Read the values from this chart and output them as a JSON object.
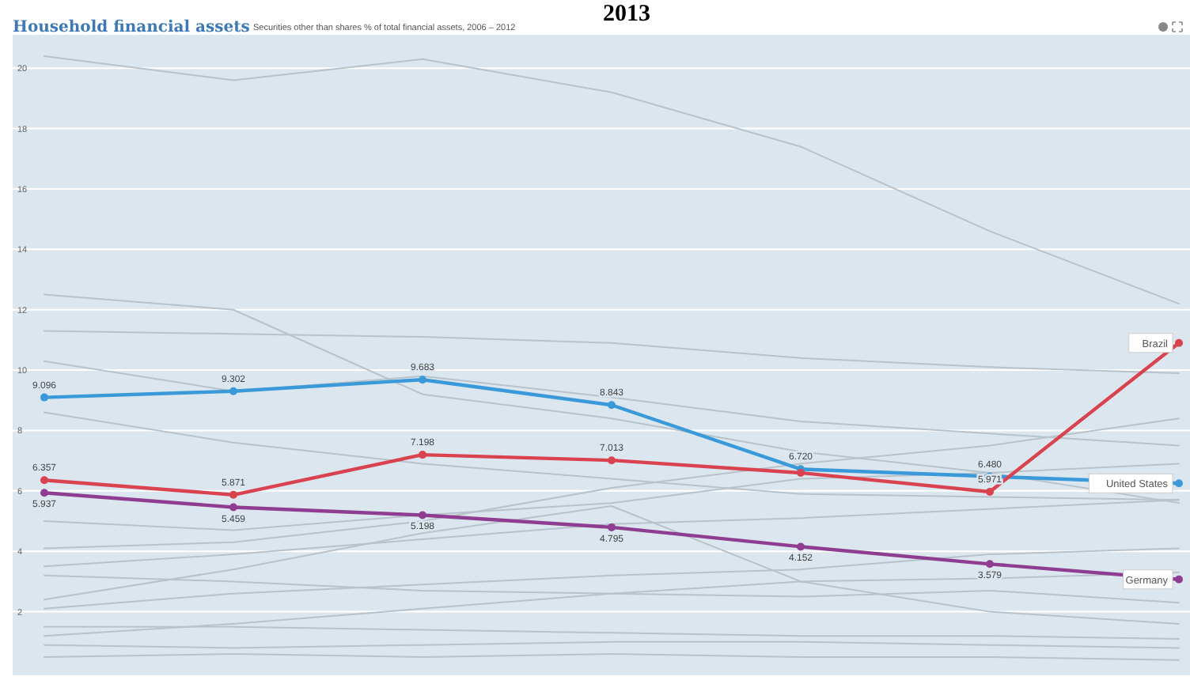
{
  "chart_data": {
    "type": "line",
    "title": "Household financial assets",
    "subtitle": "Securities other than shares % of total financial assets, 2006 – 2012",
    "annotations": [
      "2013"
    ],
    "categories": [
      null,
      null,
      null,
      null,
      null,
      null,
      null
    ],
    "ylim": [
      0,
      21
    ],
    "yticks": [
      2,
      4,
      6,
      8,
      10,
      12,
      14,
      16,
      18,
      20
    ],
    "grid": "y",
    "series": [
      {
        "color": "#b8c2ca",
        "marker": "none",
        "values": [
          20.4,
          19.6,
          20.3,
          19.2,
          17.4,
          14.6,
          12.2
        ]
      },
      {
        "color": "#b8c2ca",
        "marker": "none",
        "values": [
          12.5,
          12.0,
          9.2,
          8.4,
          7.3,
          6.6,
          5.6
        ]
      },
      {
        "color": "#b8c2ca",
        "marker": "none",
        "values": [
          11.3,
          11.2,
          11.1,
          10.9,
          10.4,
          10.1,
          9.9
        ]
      },
      {
        "color": "#b8c2ca",
        "marker": "none",
        "values": [
          10.3,
          9.3,
          9.8,
          9.1,
          8.3,
          7.9,
          7.5
        ]
      },
      {
        "color": "#b8c2ca",
        "marker": "none",
        "values": [
          8.6,
          7.6,
          6.9,
          6.4,
          5.9,
          5.8,
          5.7
        ]
      },
      {
        "color": "#b8c2ca",
        "marker": "none",
        "values": [
          4.1,
          4.3,
          5.0,
          6.1,
          6.9,
          7.5,
          8.4
        ]
      },
      {
        "color": "#b8c2ca",
        "marker": "none",
        "values": [
          5.0,
          4.7,
          5.2,
          5.6,
          6.4,
          6.6,
          6.9
        ]
      },
      {
        "color": "#b8c2ca",
        "marker": "none",
        "values": [
          3.5,
          3.9,
          4.4,
          4.9,
          5.1,
          5.4,
          5.7
        ]
      },
      {
        "color": "#b8c2ca",
        "marker": "none",
        "values": [
          2.4,
          3.4,
          4.6,
          5.5,
          3.0,
          2.0,
          1.6
        ]
      },
      {
        "color": "#b8c2ca",
        "marker": "none",
        "values": [
          2.1,
          2.6,
          2.9,
          3.2,
          3.4,
          3.9,
          4.1
        ]
      },
      {
        "color": "#b8c2ca",
        "marker": "none",
        "values": [
          3.2,
          3.0,
          2.7,
          2.6,
          2.5,
          2.7,
          2.3
        ]
      },
      {
        "color": "#b8c2ca",
        "marker": "none",
        "values": [
          1.2,
          1.6,
          2.1,
          2.6,
          3.0,
          3.1,
          3.3
        ]
      },
      {
        "color": "#b8c2ca",
        "marker": "none",
        "values": [
          1.5,
          1.5,
          1.4,
          1.3,
          1.2,
          1.2,
          1.1
        ]
      },
      {
        "color": "#b8c2ca",
        "marker": "none",
        "values": [
          0.9,
          0.8,
          0.9,
          1.0,
          1.0,
          0.9,
          0.8
        ]
      },
      {
        "color": "#b8c2ca",
        "marker": "none",
        "values": [
          0.5,
          0.6,
          0.5,
          0.6,
          0.5,
          0.5,
          0.4
        ]
      },
      {
        "name": "United States",
        "color": "#3a9ad9",
        "marker": "circle",
        "values": [
          9.096,
          9.302,
          9.683,
          8.843,
          6.72,
          6.48,
          6.25
        ],
        "value_labels": [
          "9.096",
          "9.302",
          "9.683",
          "8.843",
          "6.720",
          "6.480",
          null
        ]
      },
      {
        "name": "Brazil",
        "color": "#d9434f",
        "marker": "circle",
        "values": [
          6.357,
          5.871,
          7.198,
          7.013,
          6.6,
          5.971,
          10.9
        ],
        "value_labels": [
          "6.357",
          "5.871",
          "7.198",
          "7.013",
          null,
          "5.971",
          null
        ]
      },
      {
        "name": "Germany",
        "color": "#8e3d91",
        "marker": "circle",
        "values": [
          5.937,
          5.459,
          5.198,
          4.795,
          4.152,
          3.579,
          3.07
        ],
        "value_labels": [
          "5.937",
          "5.459",
          "5.198",
          "4.795",
          "4.152",
          "3.579",
          null
        ]
      }
    ]
  }
}
